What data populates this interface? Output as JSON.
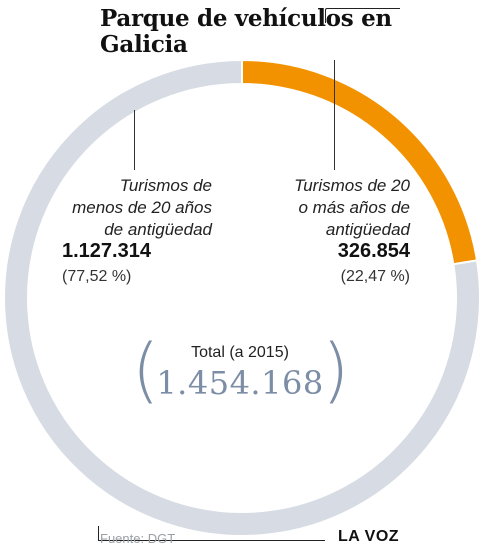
{
  "title": "Parque de vehículos en Galicia",
  "chart_data": {
    "type": "pie",
    "categories": [
      "Turismos de menos de 20 años de antigüedad",
      "Turismos de 20 o más años de antigüedad"
    ],
    "values": [
      1127314,
      326854
    ],
    "labels": [
      "1.127.314",
      "326.854"
    ],
    "percents": [
      "(77,52 %)",
      "(22,47 %)"
    ],
    "colors": [
      "#d6dbe4",
      "#f39200"
    ],
    "total_label": "Total (a 2015)",
    "total_value": "1.454.168"
  },
  "segment_left": {
    "label_lines": [
      "Turismos de",
      "menos de 20 años",
      "de antigüedad"
    ]
  },
  "segment_right": {
    "label_lines": [
      "Turismos de 20",
      "o más años de",
      "antigüedad"
    ]
  },
  "footer": {
    "source": "Fuente: DGT",
    "brand": "LA VOZ"
  }
}
